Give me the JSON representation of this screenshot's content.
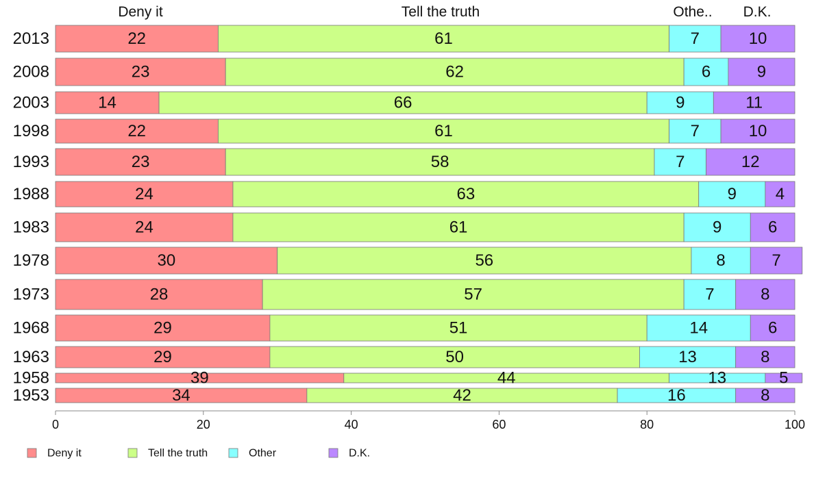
{
  "chart_data": {
    "type": "bar",
    "orientation": "horizontal",
    "stacked": true,
    "categories": [
      "2013",
      "2008",
      "2003",
      "1998",
      "1993",
      "1988",
      "1983",
      "1978",
      "1973",
      "1968",
      "1963",
      "1958",
      "1953"
    ],
    "series": [
      {
        "name": "Deny it",
        "color": "#ff8c8c",
        "values": [
          22,
          23,
          14,
          22,
          23,
          24,
          24,
          30,
          28,
          29,
          29,
          39,
          34
        ]
      },
      {
        "name": "Tell the truth",
        "color": "#ccff88",
        "values": [
          61,
          62,
          66,
          61,
          58,
          63,
          61,
          56,
          57,
          51,
          50,
          44,
          42
        ]
      },
      {
        "name": "Other",
        "color": "#88ffff",
        "values": [
          7,
          6,
          9,
          7,
          7,
          9,
          9,
          8,
          7,
          14,
          13,
          13,
          16
        ]
      },
      {
        "name": "D.K.",
        "color": "#bb88ff",
        "values": [
          10,
          9,
          11,
          10,
          12,
          4,
          6,
          7,
          8,
          6,
          8,
          5,
          8
        ]
      }
    ],
    "column_headers": [
      "Deny it",
      "Tell the truth",
      "Othe..",
      "D.K."
    ],
    "xlim": [
      0,
      100
    ],
    "xticks": [
      0,
      20,
      40,
      60,
      80,
      100
    ],
    "legend": [
      "Deny it",
      "Tell the truth",
      "Other",
      "D.K."
    ],
    "legend_position": "bottom",
    "grid": false
  }
}
